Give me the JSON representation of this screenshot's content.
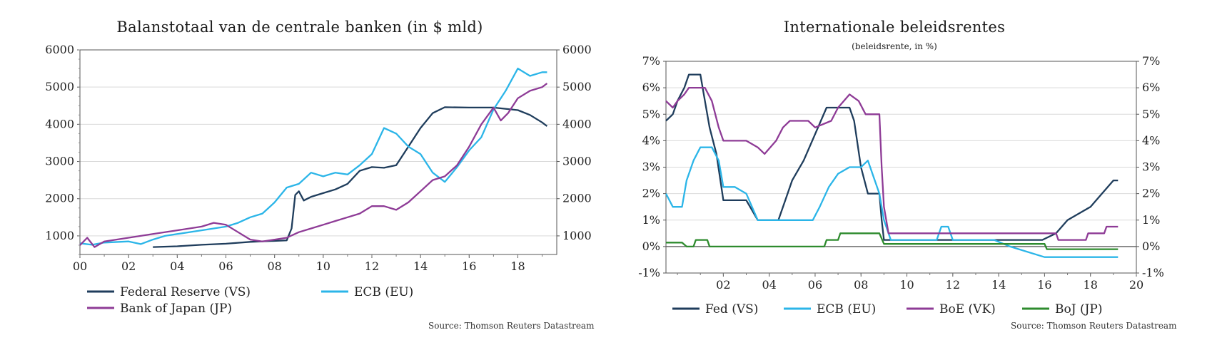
{
  "left_chart": {
    "source": "Source: Thomson Reuters Datastream",
    "chart_data": {
      "type": "line",
      "title": "Balanstotaal van de centrale banken (in $ mld)",
      "xlabel": "",
      "ylabel": "",
      "xlim": [
        2000,
        2019.6
      ],
      "ylim": [
        500,
        6000
      ],
      "x_ticks": [
        2000,
        2002,
        2004,
        2006,
        2008,
        2010,
        2012,
        2014,
        2016,
        2018
      ],
      "x_tick_labels": [
        "00",
        "02",
        "04",
        "06",
        "08",
        "10",
        "12",
        "14",
        "16",
        "18"
      ],
      "y_ticks": [
        1000,
        2000,
        3000,
        4000,
        5000,
        6000
      ],
      "y_tick_labels": [
        "1000",
        "2000",
        "3000",
        "4000",
        "5000",
        "6000"
      ],
      "dual_y_axis": true,
      "grid": "horizontal",
      "legend_position": "bottom",
      "series": [
        {
          "name": "Federal Reserve (VS)",
          "color": "#1f3d5c",
          "points": [
            [
              2003.0,
              700
            ],
            [
              2004.0,
              720
            ],
            [
              2005.0,
              760
            ],
            [
              2006.0,
              790
            ],
            [
              2007.0,
              840
            ],
            [
              2008.5,
              880
            ],
            [
              2008.7,
              1200
            ],
            [
              2008.85,
              2100
            ],
            [
              2009.0,
              2200
            ],
            [
              2009.2,
              1950
            ],
            [
              2009.5,
              2050
            ],
            [
              2010.0,
              2150
            ],
            [
              2010.5,
              2250
            ],
            [
              2011.0,
              2400
            ],
            [
              2011.5,
              2750
            ],
            [
              2012.0,
              2850
            ],
            [
              2012.5,
              2830
            ],
            [
              2013.0,
              2900
            ],
            [
              2013.5,
              3400
            ],
            [
              2014.0,
              3900
            ],
            [
              2014.5,
              4300
            ],
            [
              2015.0,
              4460
            ],
            [
              2016.0,
              4450
            ],
            [
              2017.0,
              4450
            ],
            [
              2018.0,
              4380
            ],
            [
              2018.5,
              4250
            ],
            [
              2019.0,
              4050
            ],
            [
              2019.2,
              3950
            ]
          ]
        },
        {
          "name": "ECB (EU)",
          "color": "#2bb5e8",
          "points": [
            [
              2000.0,
              800
            ],
            [
              2000.5,
              760
            ],
            [
              2001.0,
              820
            ],
            [
              2002.0,
              850
            ],
            [
              2002.5,
              780
            ],
            [
              2003.0,
              900
            ],
            [
              2003.5,
              1000
            ],
            [
              2004.0,
              1050
            ],
            [
              2005.0,
              1150
            ],
            [
              2006.0,
              1250
            ],
            [
              2006.5,
              1350
            ],
            [
              2007.0,
              1500
            ],
            [
              2007.5,
              1600
            ],
            [
              2008.0,
              1900
            ],
            [
              2008.5,
              2300
            ],
            [
              2009.0,
              2400
            ],
            [
              2009.5,
              2700
            ],
            [
              2010.0,
              2600
            ],
            [
              2010.5,
              2700
            ],
            [
              2011.0,
              2650
            ],
            [
              2011.5,
              2900
            ],
            [
              2012.0,
              3200
            ],
            [
              2012.5,
              3900
            ],
            [
              2013.0,
              3750
            ],
            [
              2013.5,
              3400
            ],
            [
              2014.0,
              3200
            ],
            [
              2014.5,
              2700
            ],
            [
              2015.0,
              2450
            ],
            [
              2015.5,
              2850
            ],
            [
              2016.0,
              3300
            ],
            [
              2016.5,
              3650
            ],
            [
              2017.0,
              4400
            ],
            [
              2017.5,
              4900
            ],
            [
              2018.0,
              5500
            ],
            [
              2018.5,
              5300
            ],
            [
              2019.0,
              5400
            ],
            [
              2019.2,
              5400
            ]
          ]
        },
        {
          "name": "Bank of Japan (JP)",
          "color": "#8e3b96",
          "points": [
            [
              2000.0,
              750
            ],
            [
              2000.3,
              950
            ],
            [
              2000.6,
              700
            ],
            [
              2001.0,
              850
            ],
            [
              2002.0,
              950
            ],
            [
              2003.0,
              1050
            ],
            [
              2004.0,
              1150
            ],
            [
              2005.0,
              1250
            ],
            [
              2005.5,
              1350
            ],
            [
              2006.0,
              1300
            ],
            [
              2006.5,
              1100
            ],
            [
              2007.0,
              900
            ],
            [
              2007.5,
              850
            ],
            [
              2008.0,
              900
            ],
            [
              2008.5,
              950
            ],
            [
              2009.0,
              1100
            ],
            [
              2009.5,
              1200
            ],
            [
              2010.0,
              1300
            ],
            [
              2010.5,
              1400
            ],
            [
              2011.0,
              1500
            ],
            [
              2011.5,
              1600
            ],
            [
              2012.0,
              1800
            ],
            [
              2012.5,
              1800
            ],
            [
              2013.0,
              1700
            ],
            [
              2013.5,
              1900
            ],
            [
              2014.0,
              2200
            ],
            [
              2014.5,
              2500
            ],
            [
              2015.0,
              2600
            ],
            [
              2015.5,
              2900
            ],
            [
              2016.0,
              3400
            ],
            [
              2016.5,
              4000
            ],
            [
              2017.0,
              4450
            ],
            [
              2017.3,
              4100
            ],
            [
              2017.6,
              4300
            ],
            [
              2018.0,
              4700
            ],
            [
              2018.5,
              4900
            ],
            [
              2019.0,
              5000
            ],
            [
              2019.2,
              5100
            ]
          ]
        }
      ]
    }
  },
  "right_chart": {
    "source": "Source: Thomson Reuters Datastream",
    "chart_data": {
      "type": "line",
      "title": "Internationale beleidsrentes",
      "subtitle": "(beleidsrente, in %)",
      "xlabel": "",
      "ylabel": "",
      "xlim": [
        1999.5,
        2020
      ],
      "ylim": [
        -1,
        7
      ],
      "x_ticks": [
        2002,
        2004,
        2006,
        2008,
        2010,
        2012,
        2014,
        2016,
        2018,
        2020
      ],
      "x_tick_labels": [
        "02",
        "04",
        "06",
        "08",
        "10",
        "12",
        "14",
        "16",
        "18",
        "20"
      ],
      "y_ticks": [
        -1,
        0,
        1,
        2,
        3,
        4,
        5,
        6,
        7
      ],
      "y_tick_labels": [
        "-1%",
        "0%",
        "1%",
        "2%",
        "3%",
        "4%",
        "5%",
        "6%",
        "7%"
      ],
      "dual_y_axis": true,
      "grid": "horizontal",
      "zero_line": true,
      "legend_position": "bottom",
      "series": [
        {
          "name": "Fed (VS)",
          "color": "#1f3d5c",
          "points": [
            [
              1999.5,
              4.75
            ],
            [
              1999.8,
              5.0
            ],
            [
              2000.0,
              5.5
            ],
            [
              2000.3,
              6.0
            ],
            [
              2000.5,
              6.5
            ],
            [
              2001.0,
              6.5
            ],
            [
              2001.2,
              5.5
            ],
            [
              2001.4,
              4.5
            ],
            [
              2001.7,
              3.5
            ],
            [
              2002.0,
              1.75
            ],
            [
              2003.0,
              1.75
            ],
            [
              2003.5,
              1.0
            ],
            [
              2004.4,
              1.0
            ],
            [
              2004.7,
              1.75
            ],
            [
              2005.0,
              2.5
            ],
            [
              2005.5,
              3.25
            ],
            [
              2006.0,
              4.25
            ],
            [
              2006.5,
              5.25
            ],
            [
              2007.5,
              5.25
            ],
            [
              2007.7,
              4.75
            ],
            [
              2008.0,
              3.0
            ],
            [
              2008.3,
              2.0
            ],
            [
              2008.8,
              2.0
            ],
            [
              2008.9,
              1.0
            ],
            [
              2009.0,
              0.25
            ],
            [
              2015.9,
              0.25
            ],
            [
              2016.5,
              0.5
            ],
            [
              2017.0,
              1.0
            ],
            [
              2017.5,
              1.25
            ],
            [
              2018.0,
              1.5
            ],
            [
              2018.5,
              2.0
            ],
            [
              2019.0,
              2.5
            ],
            [
              2019.2,
              2.5
            ]
          ]
        },
        {
          "name": "ECB (EU)",
          "color": "#2bb5e8",
          "points": [
            [
              1999.5,
              2.0
            ],
            [
              1999.8,
              1.5
            ],
            [
              2000.2,
              1.5
            ],
            [
              2000.4,
              2.5
            ],
            [
              2000.7,
              3.25
            ],
            [
              2001.0,
              3.75
            ],
            [
              2001.5,
              3.75
            ],
            [
              2001.8,
              3.25
            ],
            [
              2002.0,
              2.25
            ],
            [
              2002.5,
              2.25
            ],
            [
              2003.0,
              2.0
            ],
            [
              2003.5,
              1.0
            ],
            [
              2005.9,
              1.0
            ],
            [
              2006.2,
              1.5
            ],
            [
              2006.6,
              2.25
            ],
            [
              2007.0,
              2.75
            ],
            [
              2007.5,
              3.0
            ],
            [
              2008.0,
              3.0
            ],
            [
              2008.3,
              3.25
            ],
            [
              2008.5,
              2.75
            ],
            [
              2008.8,
              2.0
            ],
            [
              2009.0,
              1.0
            ],
            [
              2009.3,
              0.25
            ],
            [
              2011.3,
              0.25
            ],
            [
              2011.5,
              0.75
            ],
            [
              2011.8,
              0.75
            ],
            [
              2012.0,
              0.25
            ],
            [
              2013.8,
              0.25
            ],
            [
              2014.5,
              0.0
            ],
            [
              2016.0,
              -0.4
            ],
            [
              2019.2,
              -0.4
            ]
          ]
        },
        {
          "name": "BoE (VK)",
          "color": "#8e3b96",
          "points": [
            [
              1999.5,
              5.5
            ],
            [
              1999.8,
              5.25
            ],
            [
              2000.0,
              5.5
            ],
            [
              2000.3,
              5.75
            ],
            [
              2000.5,
              6.0
            ],
            [
              2001.2,
              6.0
            ],
            [
              2001.5,
              5.5
            ],
            [
              2001.8,
              4.5
            ],
            [
              2002.0,
              4.0
            ],
            [
              2003.0,
              4.0
            ],
            [
              2003.5,
              3.75
            ],
            [
              2003.8,
              3.5
            ],
            [
              2004.3,
              4.0
            ],
            [
              2004.6,
              4.5
            ],
            [
              2004.9,
              4.75
            ],
            [
              2005.7,
              4.75
            ],
            [
              2006.0,
              4.5
            ],
            [
              2006.7,
              4.75
            ],
            [
              2007.0,
              5.25
            ],
            [
              2007.5,
              5.75
            ],
            [
              2007.9,
              5.5
            ],
            [
              2008.2,
              5.0
            ],
            [
              2008.8,
              5.0
            ],
            [
              2008.9,
              3.0
            ],
            [
              2009.0,
              1.5
            ],
            [
              2009.2,
              0.5
            ],
            [
              2016.5,
              0.5
            ],
            [
              2016.6,
              0.25
            ],
            [
              2017.8,
              0.25
            ],
            [
              2017.9,
              0.5
            ],
            [
              2018.6,
              0.5
            ],
            [
              2018.7,
              0.75
            ],
            [
              2019.2,
              0.75
            ]
          ]
        },
        {
          "name": "BoJ (JP)",
          "color": "#2e8b2e",
          "points": [
            [
              1999.5,
              0.15
            ],
            [
              2000.2,
              0.15
            ],
            [
              2000.4,
              0.0
            ],
            [
              2000.7,
              0.0
            ],
            [
              2000.8,
              0.25
            ],
            [
              2001.3,
              0.25
            ],
            [
              2001.4,
              0.0
            ],
            [
              2006.4,
              0.0
            ],
            [
              2006.5,
              0.25
            ],
            [
              2007.0,
              0.25
            ],
            [
              2007.1,
              0.5
            ],
            [
              2008.8,
              0.5
            ],
            [
              2008.9,
              0.3
            ],
            [
              2009.0,
              0.1
            ],
            [
              2016.0,
              0.1
            ],
            [
              2016.1,
              -0.1
            ],
            [
              2019.2,
              -0.1
            ]
          ]
        }
      ]
    }
  }
}
